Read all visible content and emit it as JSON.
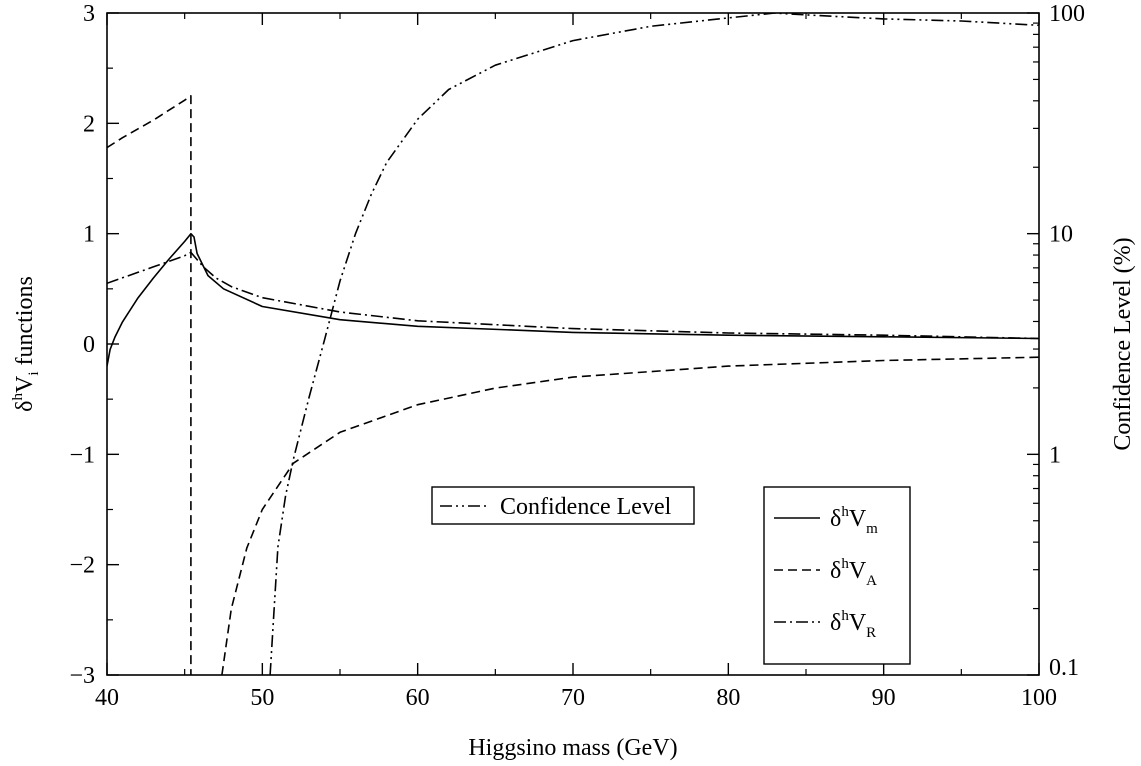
{
  "chart_data": {
    "type": "line",
    "xlabel": "Higgsino mass (GeV)",
    "ylabel_left": {
      "base": "δ",
      "sup": "h",
      "main": "V",
      "sub": "i",
      "tail": " functions"
    },
    "ylabel_right": "Confidence Level (%)",
    "xlim": [
      40,
      100
    ],
    "ylim_left": [
      -3,
      3
    ],
    "ylim_right": [
      0.1,
      100
    ],
    "right_axis_scale": "log",
    "x_ticks": [
      "40",
      "50",
      "60",
      "70",
      "80",
      "90",
      "100"
    ],
    "y_left_ticks": [
      "3",
      "2",
      "1",
      "0",
      "−1",
      "−2",
      "−3"
    ],
    "y_right_ticks": [
      "100",
      "10",
      "1",
      "0.1"
    ],
    "grid": false,
    "legend_left": {
      "placement": "center",
      "entries": [
        {
          "label": "Confidence Level",
          "series": "cl"
        }
      ]
    },
    "legend_right": {
      "placement": "lower-right",
      "entries": [
        {
          "base": "δ",
          "sup": "h",
          "main": "V",
          "sub": "m",
          "series": "vm"
        },
        {
          "base": "δ",
          "sup": "h",
          "main": "V",
          "sub": "A",
          "series": "va"
        },
        {
          "base": "δ",
          "sup": "h",
          "main": "V",
          "sub": "R",
          "series": "vr"
        }
      ]
    },
    "series": [
      {
        "id": "vm",
        "axis": "left",
        "style": "solid",
        "points": [
          [
            40,
            -0.2
          ],
          [
            40.2,
            -0.05
          ],
          [
            40.5,
            0.06
          ],
          [
            41,
            0.2
          ],
          [
            42,
            0.42
          ],
          [
            43,
            0.6
          ],
          [
            44,
            0.77
          ],
          [
            45,
            0.93
          ],
          [
            45.4,
            1.0
          ],
          [
            45.6,
            0.97
          ],
          [
            45.8,
            0.82
          ],
          [
            46.5,
            0.62
          ],
          [
            47.5,
            0.5
          ],
          [
            50,
            0.34
          ],
          [
            55,
            0.22
          ],
          [
            60,
            0.16
          ],
          [
            70,
            0.105
          ],
          [
            80,
            0.08
          ],
          [
            90,
            0.065
          ],
          [
            100,
            0.05
          ]
        ]
      },
      {
        "id": "va",
        "axis": "left",
        "style": "dashed",
        "points": [
          [
            40,
            1.78
          ],
          [
            41,
            1.87
          ],
          [
            42,
            1.95
          ],
          [
            43,
            2.03
          ],
          [
            44,
            2.12
          ],
          [
            45,
            2.21
          ],
          [
            45.4,
            2.25
          ],
          [
            45.4,
            -3.0
          ]
        ]
      },
      {
        "id": "va2",
        "axis": "left",
        "style": "dashed",
        "points": [
          [
            47.4,
            -3.0
          ],
          [
            48,
            -2.4
          ],
          [
            49,
            -1.85
          ],
          [
            50,
            -1.5
          ],
          [
            52,
            -1.08
          ],
          [
            55,
            -0.8
          ],
          [
            60,
            -0.55
          ],
          [
            65,
            -0.4
          ],
          [
            70,
            -0.3
          ],
          [
            80,
            -0.2
          ],
          [
            90,
            -0.15
          ],
          [
            100,
            -0.12
          ]
        ]
      },
      {
        "id": "vr",
        "axis": "left",
        "style": "dashdot",
        "points": [
          [
            40,
            0.55
          ],
          [
            41,
            0.6
          ],
          [
            42,
            0.65
          ],
          [
            43,
            0.7
          ],
          [
            44,
            0.75
          ],
          [
            45,
            0.8
          ],
          [
            45.4,
            0.83
          ],
          [
            46.2,
            0.7
          ],
          [
            47,
            0.6
          ],
          [
            48,
            0.52
          ],
          [
            50,
            0.42
          ],
          [
            55,
            0.29
          ],
          [
            60,
            0.21
          ],
          [
            70,
            0.14
          ],
          [
            80,
            0.1
          ],
          [
            90,
            0.08
          ],
          [
            100,
            0.05
          ]
        ]
      },
      {
        "id": "cl",
        "axis": "right",
        "style": "dashdotdot",
        "points": [
          [
            50.5,
            0.1
          ],
          [
            51,
            0.38
          ],
          [
            51.5,
            0.65
          ],
          [
            52,
            0.95
          ],
          [
            53,
            1.8
          ],
          [
            54,
            3.3
          ],
          [
            55,
            6.1
          ],
          [
            56,
            10
          ],
          [
            57,
            15
          ],
          [
            58,
            21
          ],
          [
            60,
            33
          ],
          [
            62,
            45
          ],
          [
            65,
            58
          ],
          [
            70,
            75
          ],
          [
            75,
            87
          ],
          [
            80,
            95
          ],
          [
            83,
            100
          ],
          [
            85,
            98
          ],
          [
            90,
            94
          ],
          [
            95,
            92
          ],
          [
            100,
            88
          ]
        ]
      }
    ]
  }
}
